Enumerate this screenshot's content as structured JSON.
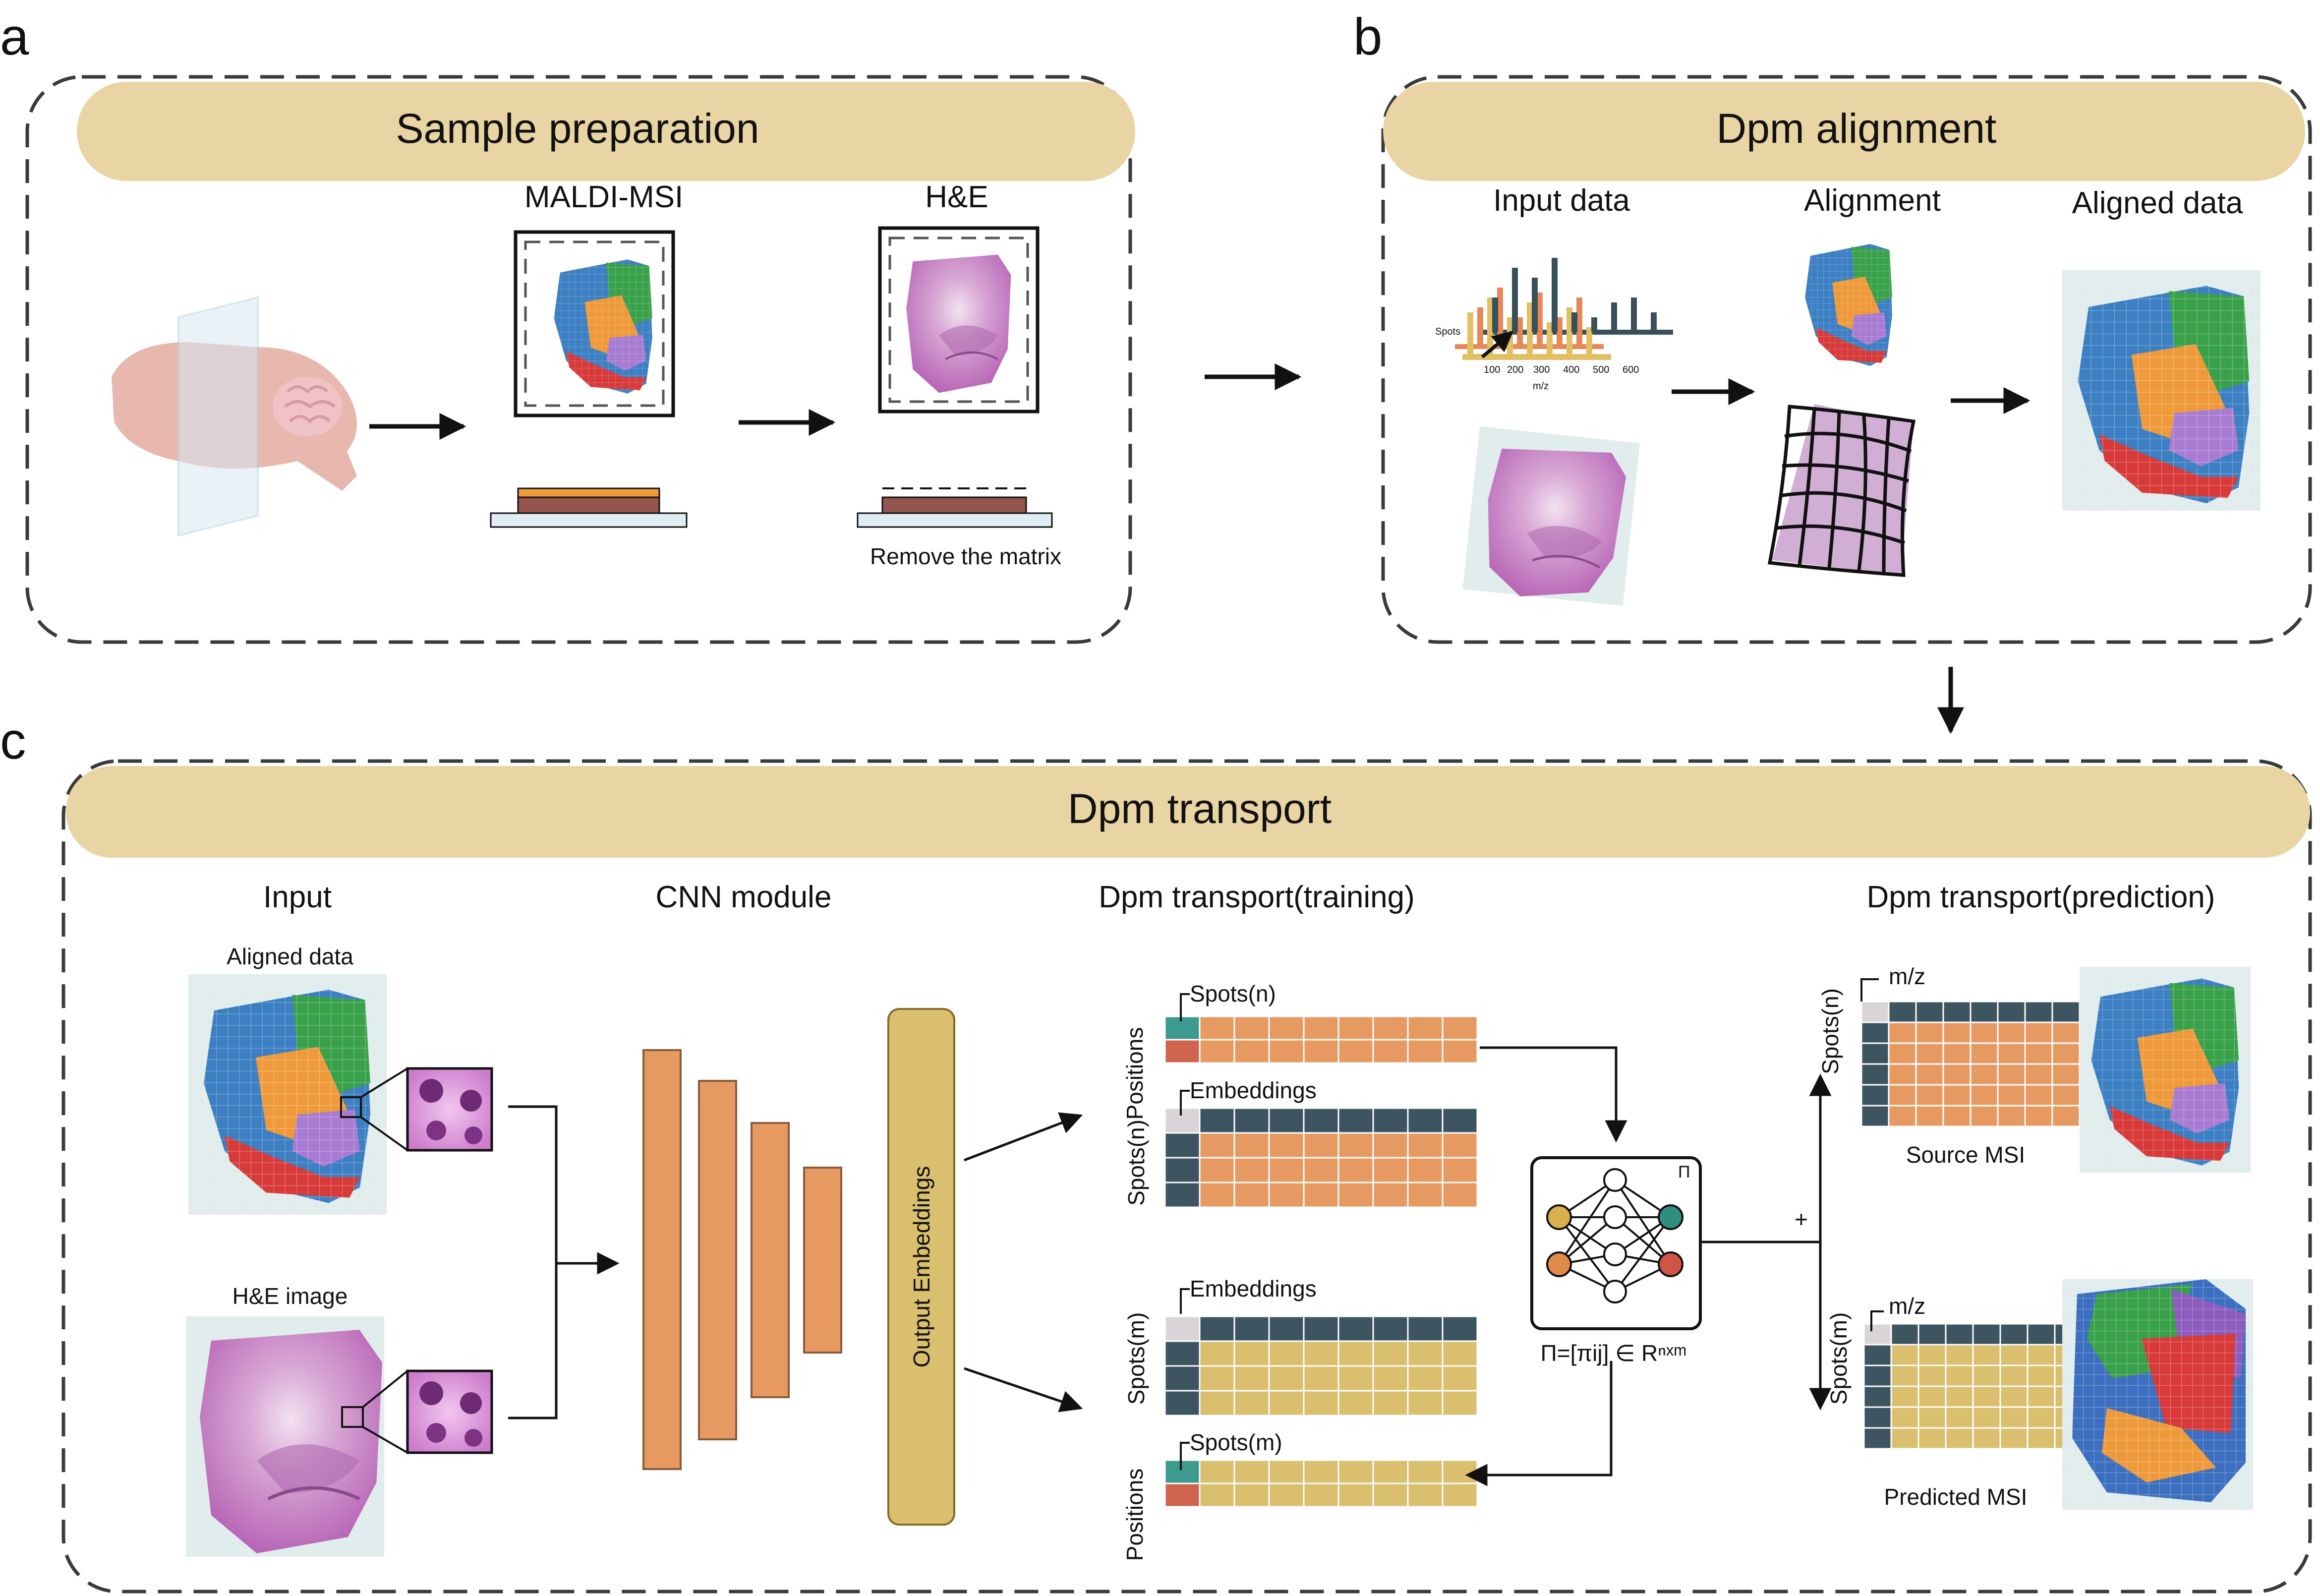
{
  "panels": {
    "a": {
      "letter": "a",
      "title": "Sample preparation",
      "maldi_label": "MALDI-MSI",
      "he_label": "H&E",
      "remove_label": "Remove the matrix"
    },
    "b": {
      "letter": "b",
      "title": "Dpm alignment",
      "input_label": "Input data",
      "alignment_label": "Alignment",
      "aligned_label": "Aligned data",
      "spectrum": {
        "spots_label": "Spots",
        "xaxis_label": "m/z",
        "ticks": [
          "100",
          "200",
          "300",
          "400",
          "500",
          "600"
        ]
      }
    },
    "c": {
      "letter": "c",
      "title": "Dpm transport",
      "input_label": "Input",
      "aligned_data_label": "Aligned data",
      "he_image_label": "H&E image",
      "cnn_label": "CNN module",
      "output_embeddings_label": "Output Embeddings",
      "training_label": "Dpm transport(training)",
      "prediction_label": "Dpm transport(prediction)",
      "positions_label": "Positions",
      "spots_n_label": "Spots(n)",
      "spots_m_label": "Spots(m)",
      "embeddings_label": "Embeddings",
      "mz_label": "m/z",
      "pi_symbol": "Π",
      "pi_formula": "Π=[πij] ∈ Rⁿˣᵐ",
      "plus": "+",
      "source_label": "Source MSI",
      "predicted_label": "Predicted MSI"
    }
  },
  "colors": {
    "header_bg": "#e9d5a3",
    "orange": "#e69a62",
    "gold": "#d9bf6e",
    "slate": "#3d5561",
    "teal": "#3c9b8e",
    "red": "#d0644f",
    "he_pink": "#c98fc8",
    "node_gold": "#d8b04e",
    "node_orange": "#e08a4c",
    "node_teal": "#2e8f7e",
    "node_red": "#cf5546"
  }
}
